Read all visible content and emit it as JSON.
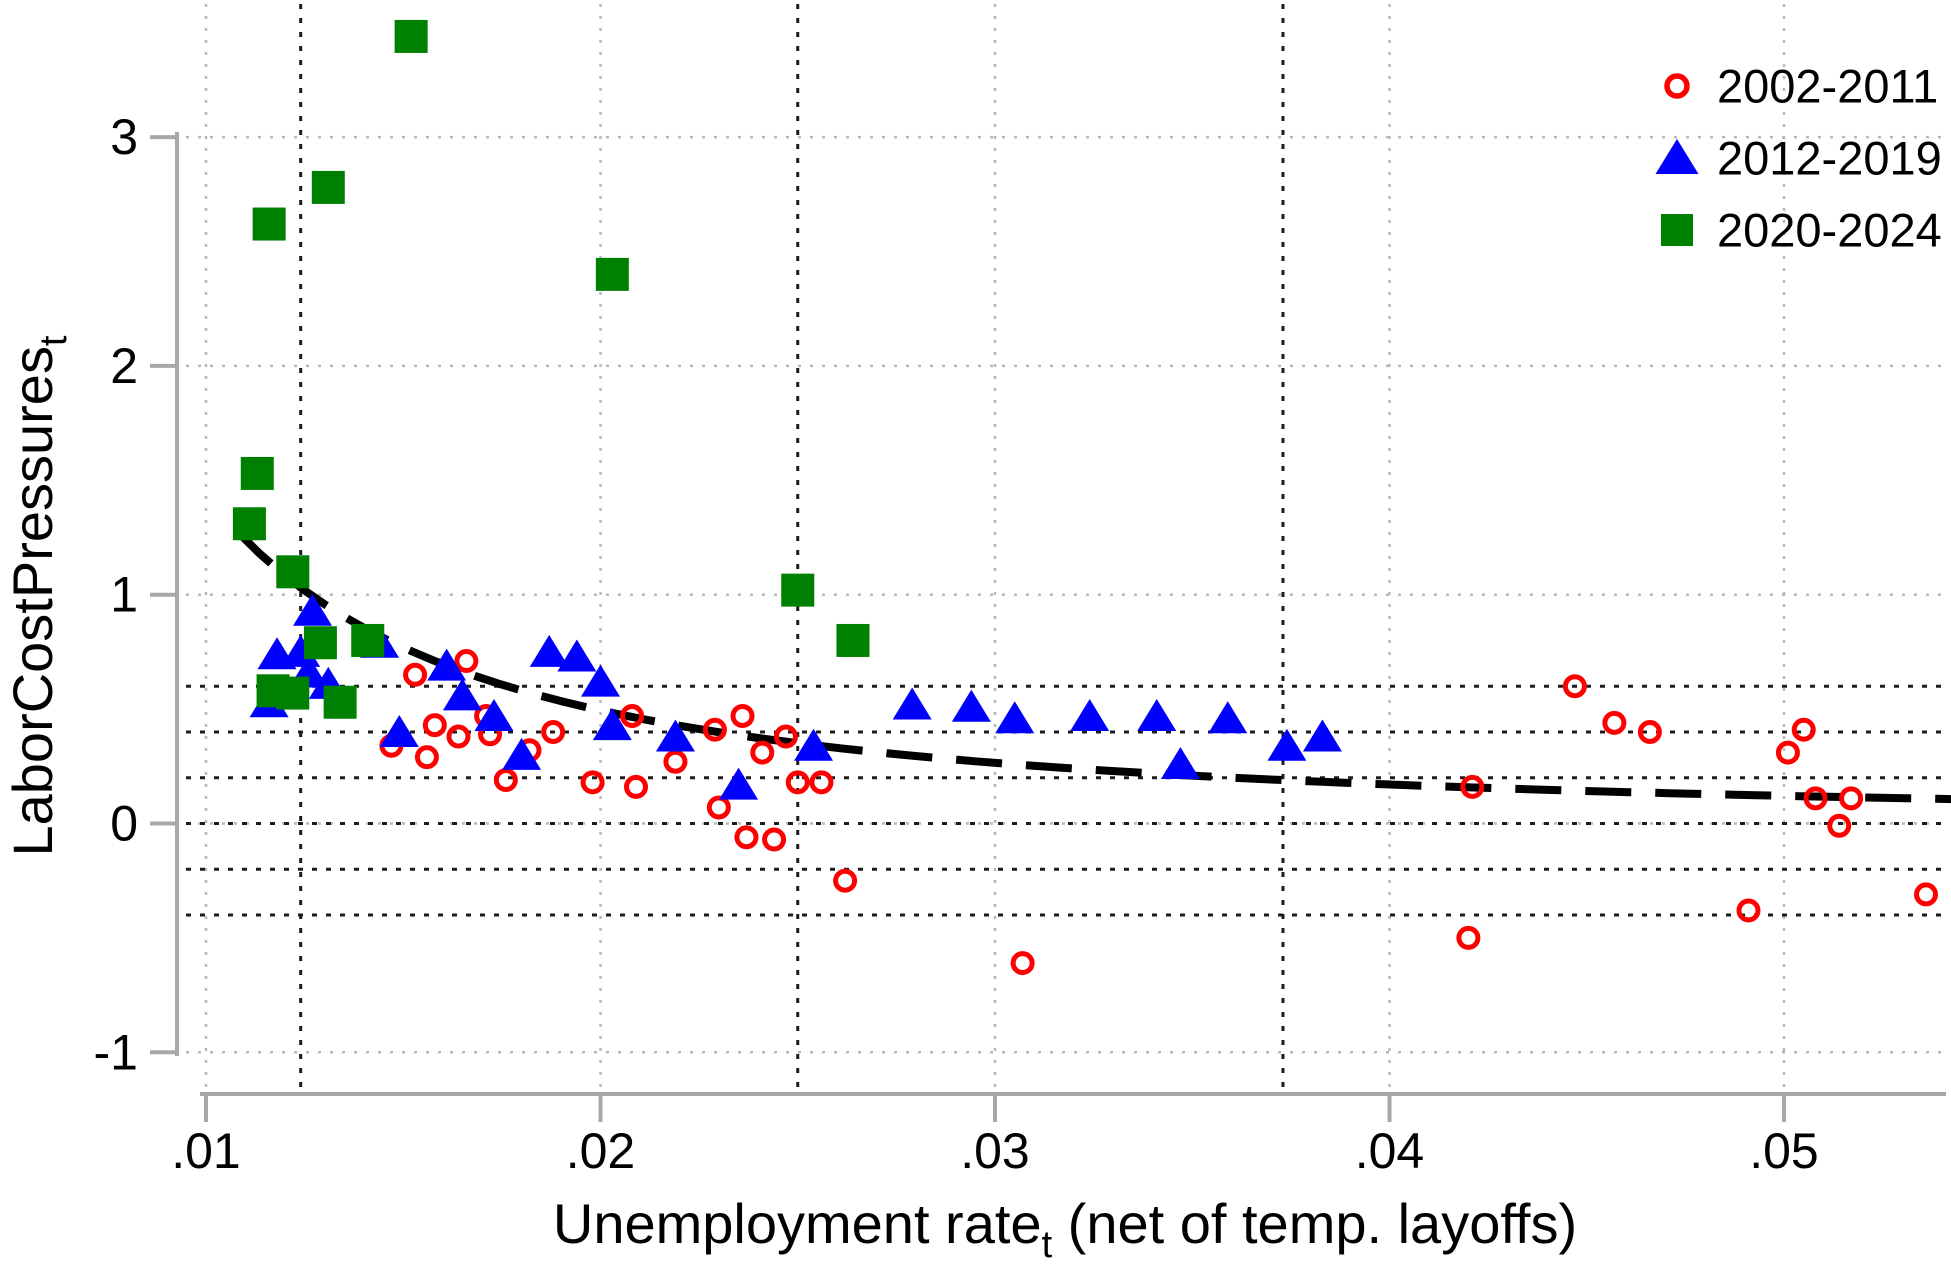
{
  "chart_data": {
    "type": "scatter",
    "title": "",
    "xlabel": {
      "text": "Unemployment rate",
      "subscript": "t",
      "suffix": " (net of temp. layoffs)"
    },
    "ylabel": {
      "text": "LaborCostPressures",
      "subscript": "t"
    },
    "x_axis": {
      "range": [
        0.0093,
        0.0552
      ],
      "ticks": [
        {
          "value": 0.01,
          "label": ".01"
        },
        {
          "value": 0.02,
          "label": ".02"
        },
        {
          "value": 0.03,
          "label": ".03"
        },
        {
          "value": 0.04,
          "label": ".04"
        },
        {
          "value": 0.05,
          "label": ".05"
        }
      ]
    },
    "y_axis": {
      "range": [
        -1.2,
        3.55
      ],
      "ticks": [
        {
          "value": -1,
          "label": "-1"
        },
        {
          "value": 0,
          "label": "0"
        },
        {
          "value": 1,
          "label": "1"
        },
        {
          "value": 2,
          "label": "2"
        },
        {
          "value": 3,
          "label": "3"
        }
      ]
    },
    "grid": {
      "x_reference_lines": [
        0.0124,
        0.025,
        0.0373
      ],
      "y_reference_lines": [
        0.6,
        0.4,
        0.2,
        0,
        -0.2,
        -0.4
      ]
    },
    "series": [
      {
        "name": "2002-2011",
        "marker": "open-circle",
        "color": "#ff0000",
        "points": [
          [
            0.0147,
            0.34
          ],
          [
            0.0153,
            0.65
          ],
          [
            0.0156,
            0.29
          ],
          [
            0.0158,
            0.43
          ],
          [
            0.0164,
            0.38
          ],
          [
            0.0166,
            0.71
          ],
          [
            0.0171,
            0.47
          ],
          [
            0.0172,
            0.39
          ],
          [
            0.0176,
            0.19
          ],
          [
            0.0182,
            0.32
          ],
          [
            0.0188,
            0.4
          ],
          [
            0.0198,
            0.18
          ],
          [
            0.0208,
            0.47
          ],
          [
            0.0209,
            0.16
          ],
          [
            0.0219,
            0.27
          ],
          [
            0.0229,
            0.41
          ],
          [
            0.023,
            0.07
          ],
          [
            0.0236,
            0.47
          ],
          [
            0.0237,
            -0.06
          ],
          [
            0.0241,
            0.31
          ],
          [
            0.0244,
            -0.07
          ],
          [
            0.0247,
            0.38
          ],
          [
            0.025,
            0.18
          ],
          [
            0.0256,
            0.18
          ],
          [
            0.0262,
            -0.25
          ],
          [
            0.0307,
            -0.61
          ],
          [
            0.042,
            -0.5
          ],
          [
            0.0421,
            0.16
          ],
          [
            0.0447,
            0.6
          ],
          [
            0.0457,
            0.44
          ],
          [
            0.0466,
            0.4
          ],
          [
            0.0491,
            -0.38
          ],
          [
            0.0501,
            0.31
          ],
          [
            0.0505,
            0.41
          ],
          [
            0.0508,
            0.11
          ],
          [
            0.0514,
            -0.01
          ],
          [
            0.0517,
            0.11
          ],
          [
            0.0536,
            -0.31
          ]
        ]
      },
      {
        "name": "2012-2019",
        "marker": "filled-triangle",
        "color": "#0000ff",
        "points": [
          [
            0.0116,
            0.53
          ],
          [
            0.0118,
            0.74
          ],
          [
            0.0124,
            0.75
          ],
          [
            0.0126,
            0.66
          ],
          [
            0.0127,
            0.93
          ],
          [
            0.0131,
            0.61
          ],
          [
            0.0144,
            0.79
          ],
          [
            0.0149,
            0.4
          ],
          [
            0.0161,
            0.69
          ],
          [
            0.0165,
            0.56
          ],
          [
            0.0173,
            0.47
          ],
          [
            0.018,
            0.3
          ],
          [
            0.0187,
            0.75
          ],
          [
            0.0194,
            0.73
          ],
          [
            0.02,
            0.62
          ],
          [
            0.0203,
            0.43
          ],
          [
            0.0219,
            0.38
          ],
          [
            0.0235,
            0.17
          ],
          [
            0.0254,
            0.34
          ],
          [
            0.0279,
            0.52
          ],
          [
            0.0294,
            0.51
          ],
          [
            0.0305,
            0.46
          ],
          [
            0.0324,
            0.47
          ],
          [
            0.0341,
            0.47
          ],
          [
            0.0347,
            0.26
          ],
          [
            0.0359,
            0.46
          ],
          [
            0.0374,
            0.34
          ],
          [
            0.0383,
            0.38
          ]
        ]
      },
      {
        "name": "2020-2024",
        "marker": "filled-square",
        "color": "#008000",
        "points": [
          [
            0.0111,
            1.31
          ],
          [
            0.0113,
            1.53
          ],
          [
            0.0116,
            2.62
          ],
          [
            0.0117,
            0.58
          ],
          [
            0.0122,
            1.1
          ],
          [
            0.0122,
            0.57
          ],
          [
            0.0129,
            0.79
          ],
          [
            0.0131,
            2.78
          ],
          [
            0.0134,
            0.53
          ],
          [
            0.0141,
            0.8
          ],
          [
            0.0152,
            3.44
          ],
          [
            0.0203,
            2.4
          ],
          [
            0.025,
            1.02
          ],
          [
            0.0264,
            0.8
          ]
        ]
      }
    ],
    "fit_curve": {
      "style": "dashed",
      "color": "#000000",
      "power_coef": 0.00121,
      "power_exp": -1.537,
      "x_start": 0.0108,
      "x_end": 0.0548
    },
    "legend": {
      "position": "top-right"
    }
  },
  "colors": {
    "axis": "#a8a8a8",
    "tick_label": "#000000",
    "grid_light": "#b8b8b8",
    "grid_dark": "#1c1c1c",
    "background": "#ffffff"
  }
}
